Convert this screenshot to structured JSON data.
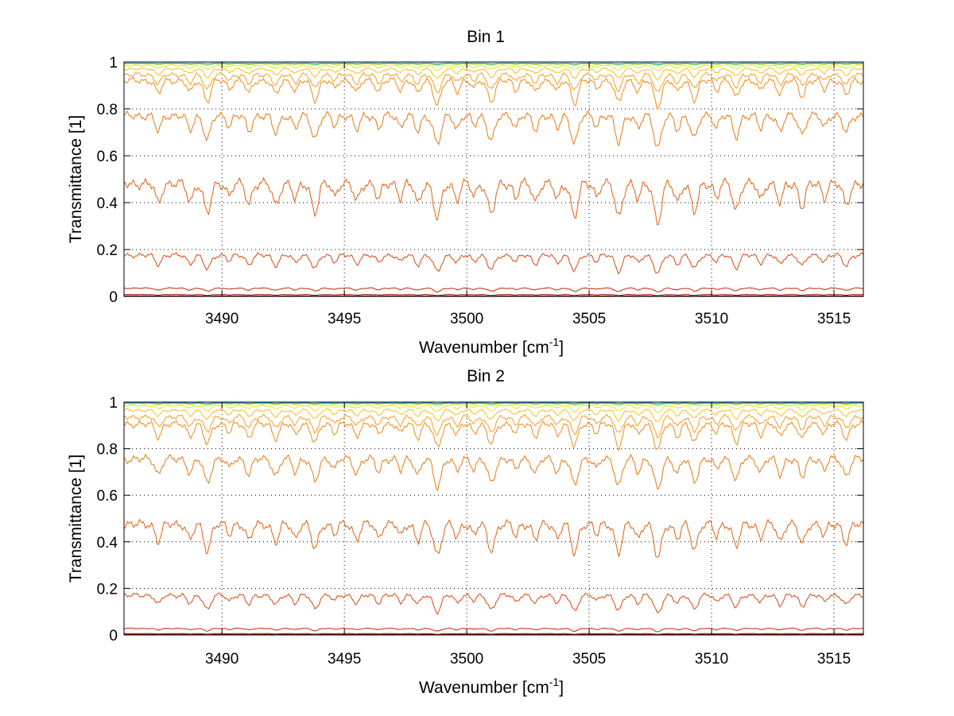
{
  "figure": {
    "background": "#ffffff"
  },
  "chart_data": [
    {
      "type": "line",
      "title": "Bin 1",
      "xlabel": "Wavenumber",
      "xlabel_unit_base": "[cm",
      "xlabel_unit_sup": "-1",
      "xlabel_unit_end": "]",
      "ylabel": "Transmittance [1]",
      "xlim": [
        3486,
        3516.2
      ],
      "ylim": [
        0,
        1
      ],
      "xticks": [
        3490,
        3495,
        3500,
        3505,
        3510,
        3515
      ],
      "xtick_labels": [
        "3490",
        "3495",
        "3500",
        "3505",
        "3510",
        "3515"
      ],
      "yticks": [
        0,
        0.2,
        0.4,
        0.6,
        0.8,
        1
      ],
      "ytick_labels": [
        "0",
        "0.2",
        "0.4",
        "0.6",
        "0.8",
        "1"
      ],
      "grid": true,
      "series": [
        {
          "baseline": 0.995,
          "depth_scale": 0.003,
          "color": "#1a9fd6"
        },
        {
          "baseline": 0.995,
          "depth_scale": 0.004,
          "color": "#40c8c0"
        },
        {
          "baseline": 0.994,
          "depth_scale": 0.005,
          "color": "#7fe070"
        },
        {
          "baseline": 0.992,
          "depth_scale": 0.008,
          "color": "#c8ec30"
        },
        {
          "baseline": 0.985,
          "depth_scale": 0.02,
          "color": "#e8e020"
        },
        {
          "baseline": 0.97,
          "depth_scale": 0.04,
          "color": "#f2c020"
        },
        {
          "baseline": 0.945,
          "depth_scale": 0.07,
          "color": "#f0a020"
        },
        {
          "baseline": 0.92,
          "depth_scale": 0.1,
          "color": "#ee8a18"
        },
        {
          "baseline": 0.77,
          "depth_scale": 0.12,
          "color": "#e87810"
        },
        {
          "baseline": 0.48,
          "depth_scale": 0.15,
          "color": "#e06010"
        },
        {
          "baseline": 0.175,
          "depth_scale": 0.07,
          "color": "#d84810"
        },
        {
          "baseline": 0.035,
          "depth_scale": 0.015,
          "color": "#c02808"
        },
        {
          "baseline": 0.008,
          "depth_scale": 0.004,
          "color": "#a01008"
        },
        {
          "baseline": 0.002,
          "depth_scale": 0.001,
          "color": "#800000"
        }
      ]
    },
    {
      "type": "line",
      "title": "Bin 2",
      "xlabel": "Wavenumber",
      "xlabel_unit_base": "[cm",
      "xlabel_unit_sup": "-1",
      "xlabel_unit_end": "]",
      "ylabel": "Transmittance [1]",
      "xlim": [
        3486,
        3516.2
      ],
      "ylim": [
        0,
        1
      ],
      "xticks": [
        3490,
        3495,
        3500,
        3505,
        3510,
        3515
      ],
      "xtick_labels": [
        "3490",
        "3495",
        "3500",
        "3505",
        "3510",
        "3515"
      ],
      "yticks": [
        0,
        0.2,
        0.4,
        0.6,
        0.8,
        1
      ],
      "ytick_labels": [
        "0",
        "0.2",
        "0.4",
        "0.6",
        "0.8",
        "1"
      ],
      "grid": true,
      "series": [
        {
          "baseline": 0.997,
          "depth_scale": 0.003,
          "color": "#1a9fd6"
        },
        {
          "baseline": 0.996,
          "depth_scale": 0.004,
          "color": "#40c8c0"
        },
        {
          "baseline": 0.995,
          "depth_scale": 0.005,
          "color": "#7fe070"
        },
        {
          "baseline": 0.993,
          "depth_scale": 0.01,
          "color": "#c8ec30"
        },
        {
          "baseline": 0.985,
          "depth_scale": 0.025,
          "color": "#e8e020"
        },
        {
          "baseline": 0.965,
          "depth_scale": 0.045,
          "color": "#f2c020"
        },
        {
          "baseline": 0.935,
          "depth_scale": 0.075,
          "color": "#f0a020"
        },
        {
          "baseline": 0.905,
          "depth_scale": 0.1,
          "color": "#ee8a18"
        },
        {
          "baseline": 0.755,
          "depth_scale": 0.12,
          "color": "#e87810"
        },
        {
          "baseline": 0.475,
          "depth_scale": 0.13,
          "color": "#e06010"
        },
        {
          "baseline": 0.17,
          "depth_scale": 0.07,
          "color": "#d84810"
        },
        {
          "baseline": 0.028,
          "depth_scale": 0.012,
          "color": "#c02808"
        },
        {
          "baseline": 0.006,
          "depth_scale": 0.003,
          "color": "#a01008"
        },
        {
          "baseline": 0.002,
          "depth_scale": 0.001,
          "color": "#800000"
        }
      ]
    }
  ],
  "absorption_lines": [
    [
      3487.4,
      0.55,
      0.12
    ],
    [
      3488.7,
      0.5,
      0.12
    ],
    [
      3489.4,
      0.85,
      0.14
    ],
    [
      3490.3,
      0.35,
      0.1
    ],
    [
      3491.1,
      0.55,
      0.12
    ],
    [
      3492.2,
      0.6,
      0.13
    ],
    [
      3493.0,
      0.45,
      0.11
    ],
    [
      3493.8,
      0.8,
      0.14
    ],
    [
      3494.6,
      0.35,
      0.1
    ],
    [
      3495.5,
      0.5,
      0.12
    ],
    [
      3496.4,
      0.45,
      0.11
    ],
    [
      3497.3,
      0.4,
      0.1
    ],
    [
      3498.0,
      0.55,
      0.12
    ],
    [
      3498.8,
      1.0,
      0.15
    ],
    [
      3499.6,
      0.45,
      0.11
    ],
    [
      3500.3,
      0.35,
      0.1
    ],
    [
      3501.0,
      0.85,
      0.15
    ],
    [
      3502.0,
      0.4,
      0.1
    ],
    [
      3502.8,
      0.5,
      0.12
    ],
    [
      3503.7,
      0.45,
      0.11
    ],
    [
      3504.4,
      0.95,
      0.14
    ],
    [
      3505.3,
      0.35,
      0.1
    ],
    [
      3506.2,
      0.95,
      0.14
    ],
    [
      3507.0,
      0.45,
      0.11
    ],
    [
      3507.8,
      1.1,
      0.15
    ],
    [
      3508.6,
      0.5,
      0.12
    ],
    [
      3509.3,
      0.8,
      0.14
    ],
    [
      3510.2,
      0.4,
      0.1
    ],
    [
      3511.0,
      0.75,
      0.13
    ],
    [
      3512.0,
      0.45,
      0.11
    ],
    [
      3512.8,
      0.55,
      0.12
    ],
    [
      3513.7,
      0.65,
      0.13
    ],
    [
      3514.6,
      0.4,
      0.1
    ],
    [
      3515.5,
      0.6,
      0.13
    ]
  ]
}
